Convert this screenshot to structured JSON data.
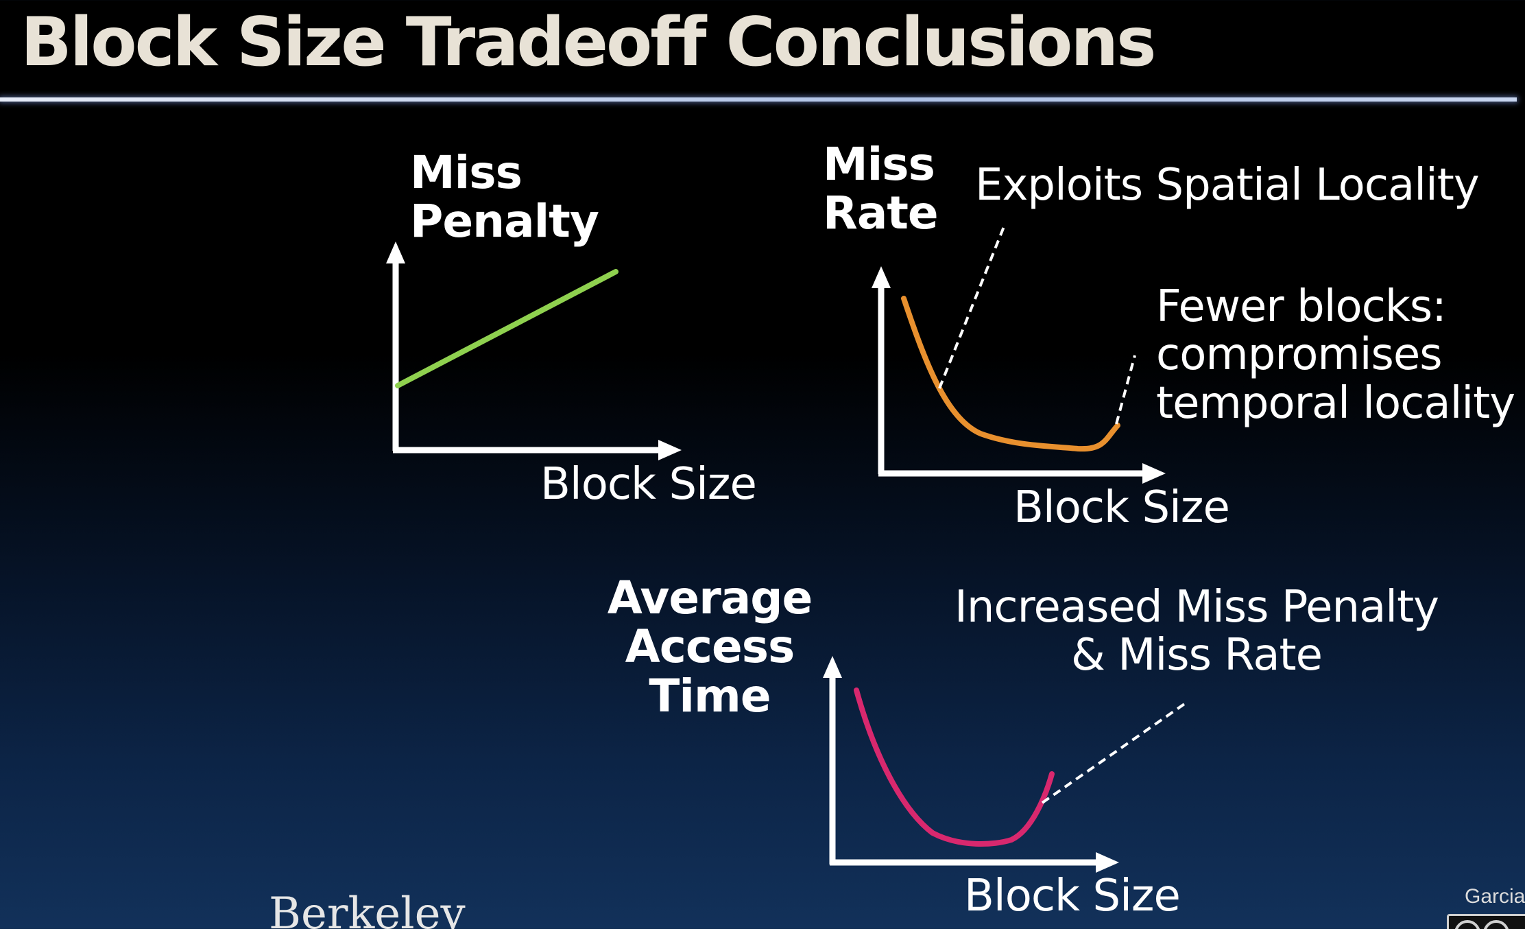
{
  "slide": {
    "title": "Block Size Tradeoff Conclusions",
    "logo_text": "Berkeley",
    "author": "Garcia"
  },
  "diagrams": [
    {
      "id": "miss-penalty",
      "y_title": [
        "Miss",
        "Penalty"
      ],
      "x_label": "Block Size",
      "curve_color": "#8fd14f",
      "annotations": []
    },
    {
      "id": "miss-rate",
      "y_title": [
        "Miss",
        "Rate"
      ],
      "x_label": "Block Size",
      "curve_color": "#e8902e",
      "annotations": [
        {
          "lines": [
            "Exploits Spatial Locality"
          ]
        },
        {
          "lines": [
            "Fewer blocks:",
            "compromises",
            "temporal locality"
          ]
        }
      ]
    },
    {
      "id": "average-access-time",
      "y_title": [
        "Average",
        "Access",
        "Time"
      ],
      "x_label": "Block Size",
      "curve_color": "#d8286e",
      "annotations": [
        {
          "lines": [
            "Increased Miss Penalty",
            "& Miss Rate"
          ]
        }
      ]
    }
  ],
  "colors": {
    "title_text": "#e8e2d6",
    "axis": "#ffffff",
    "leader_line": "#ffffff"
  }
}
